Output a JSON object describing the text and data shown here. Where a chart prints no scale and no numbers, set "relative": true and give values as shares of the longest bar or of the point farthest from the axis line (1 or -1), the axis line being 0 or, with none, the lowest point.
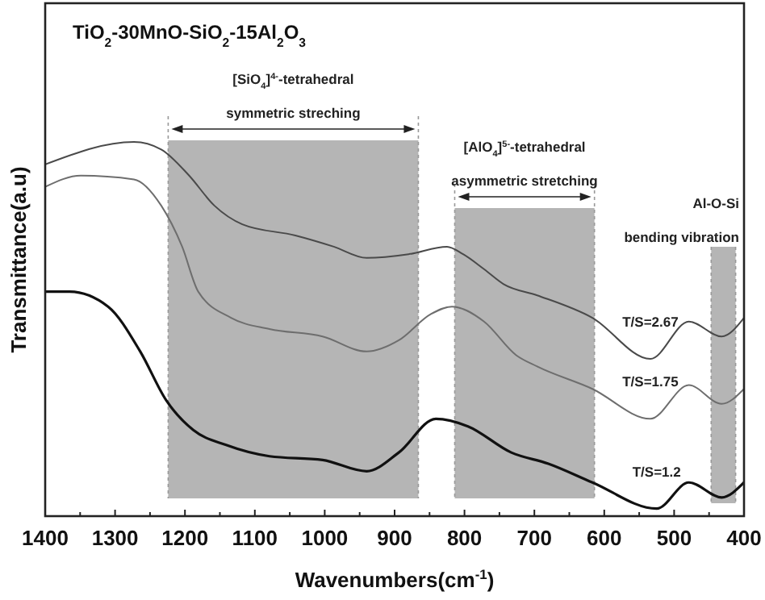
{
  "chart_data": {
    "type": "line",
    "relative": true,
    "title": "TiO$_{2}$-30MnO-SiO$_{2}$-15Al$_{2}$O$_{3}$",
    "xlabel": "Wavenumbers(cm$^{-1}$)",
    "ylabel": "Transmittance(a.u)",
    "xlim": [
      1400,
      400
    ],
    "xticks": [
      1400,
      {
        "value": 1350,
        "label": null
      },
      1300,
      {
        "value": 1250,
        "label": null
      },
      1200,
      {
        "value": 1150,
        "label": null
      },
      1100,
      {
        "value": 1050,
        "label": null
      },
      1000,
      {
        "value": 950,
        "label": null
      },
      900,
      {
        "value": 850,
        "label": null
      },
      800,
      {
        "value": 750,
        "label": null
      },
      700,
      {
        "value": 650,
        "label": null
      },
      600,
      {
        "value": 550,
        "label": null
      },
      500,
      {
        "value": 450,
        "label": null
      },
      400
    ],
    "tick_labels": "x",
    "grid": false,
    "line_style": "solid",
    "marker": "none",
    "series": [
      {
        "name": "T/S=2.67",
        "color": "#4a4a4a",
        "x": [
          1400,
          1273,
          1234,
          1194,
          1158,
          1118,
          1042,
          987,
          940,
          880,
          825,
          802,
          772,
          744,
          696,
          617,
          534,
          479,
          432,
          400
        ],
        "values": [
          0.94,
          1.0,
          0.98,
          0.91,
          0.83,
          0.78,
          0.75,
          0.72,
          0.69,
          0.7,
          0.72,
          0.7,
          0.66,
          0.62,
          0.59,
          0.53,
          0.42,
          0.52,
          0.48,
          0.53
        ]
      },
      {
        "name": "T/S=1.75",
        "color": "#6e6e6e",
        "x": [
          1400,
          1349,
          1273,
          1234,
          1204,
          1181,
          1134,
          1079,
          1003,
          940,
          894,
          848,
          818,
          772,
          726,
          696,
          617,
          534,
          479,
          432,
          400
        ],
        "values": [
          0.88,
          0.91,
          0.9,
          0.83,
          0.72,
          0.6,
          0.53,
          0.5,
          0.48,
          0.44,
          0.47,
          0.54,
          0.56,
          0.52,
          0.43,
          0.4,
          0.34,
          0.26,
          0.35,
          0.3,
          0.34
        ]
      },
      {
        "name": "T/S=1.2",
        "color": "#111111",
        "x": [
          1400,
          1365,
          1310,
          1264,
          1227,
          1188,
          1141,
          1079,
          1003,
          940,
          894,
          841,
          795,
          733,
          680,
          617,
          525,
          479,
          432,
          400
        ],
        "values": [
          0.6,
          0.6,
          0.56,
          0.44,
          0.31,
          0.23,
          0.19,
          0.16,
          0.15,
          0.12,
          0.17,
          0.26,
          0.24,
          0.17,
          0.14,
          0.09,
          0.02,
          0.09,
          0.05,
          0.09
        ]
      }
    ],
    "bands": [
      {
        "axis": "x",
        "from": 1224,
        "to": 866,
        "label": "[SiO$_{4}$]$^{4-}$-tetrahedral\nsymmetric streching",
        "color": "#b5b5b5"
      },
      {
        "axis": "x",
        "from": 814,
        "to": 614,
        "label": "[AlO$_{4}$]$^{5-}$-tetrahedral\nasymmetric stretching",
        "color": "#b5b5b5"
      },
      {
        "axis": "x",
        "from": 447,
        "to": 412,
        "label": "Al-O-Si\nbending vibration",
        "color": "#b5b5b5"
      }
    ]
  }
}
